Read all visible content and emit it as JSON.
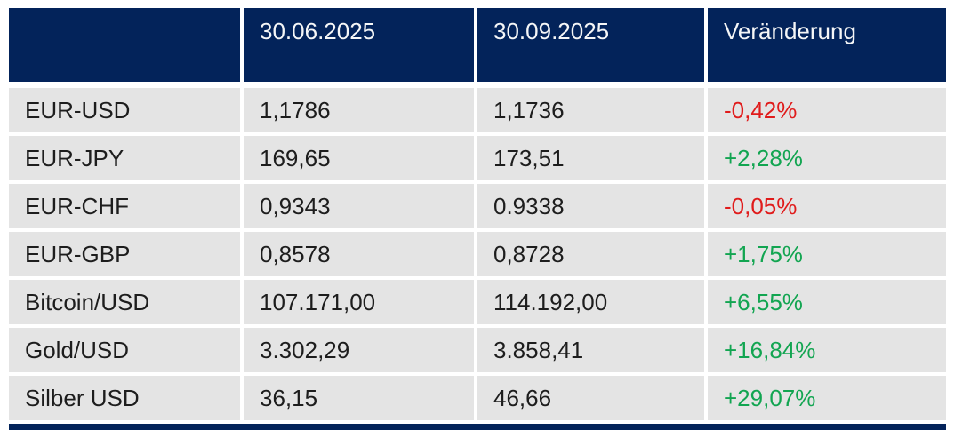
{
  "table": {
    "columns": [
      "",
      "30.06.2025",
      "30.09.2025",
      "Veränderung"
    ],
    "rows": [
      {
        "label": "EUR-USD",
        "v1": "1,1786",
        "v2": "1,1736",
        "change": "-0,42%",
        "direction": "down",
        "change_color": "#e01b1b"
      },
      {
        "label": "EUR-JPY",
        "v1": "169,65",
        "v2": "173,51",
        "change": "+2,28%",
        "direction": "up",
        "change_color": "#12a551"
      },
      {
        "label": "EUR-CHF",
        "v1": "0,9343",
        "v2": "0.9338",
        "change": "-0,05%",
        "direction": "down",
        "change_color": "#e01b1b"
      },
      {
        "label": "EUR-GBP",
        "v1": "0,8578",
        "v2": "0,8728",
        "change": "+1,75%",
        "direction": "up",
        "change_color": "#12a551"
      },
      {
        "label": "Bitcoin/USD",
        "v1": "107.171,00",
        "v2": "114.192,00",
        "change": "+6,55%",
        "direction": "up",
        "change_color": "#12a551"
      },
      {
        "label": "Gold/USD",
        "v1": "3.302,29",
        "v2": "3.858,41",
        "change": "+16,84%",
        "direction": "up",
        "change_color": "#12a551"
      },
      {
        "label": "Silber USD",
        "v1": "36,15",
        "v2": "46,66",
        "change": "+29,07%",
        "direction": "up",
        "change_color": "#12a551"
      }
    ],
    "colors": {
      "header_bg": "#03235a",
      "header_text": "#f5f6f7",
      "row_bg": "#e4e4e4",
      "body_text": "#1d1d1d",
      "negative": "#e01b1b",
      "positive": "#12a551"
    }
  },
  "chart_data": {
    "type": "table",
    "title": "",
    "columns": [
      "",
      "30.06.2025",
      "30.09.2025",
      "Veränderung"
    ],
    "rows": [
      [
        "EUR-USD",
        "1,1786",
        "1,1736",
        "-0,42%"
      ],
      [
        "EUR-JPY",
        "169,65",
        "173,51",
        "+2,28%"
      ],
      [
        "EUR-CHF",
        "0,9343",
        "0.9338",
        "-0,05%"
      ],
      [
        "EUR-GBP",
        "0,8578",
        "0,8728",
        "+1,75%"
      ],
      [
        "Bitcoin/USD",
        "107.171,00",
        "114.192,00",
        "+6,55%"
      ],
      [
        "Gold/USD",
        "3.302,29",
        "3.858,41",
        "+16,84%"
      ],
      [
        "Silber USD",
        "36,15",
        "46,66",
        "+29,07%"
      ]
    ],
    "change_directions": [
      "down",
      "up",
      "down",
      "up",
      "up",
      "up",
      "up"
    ]
  }
}
